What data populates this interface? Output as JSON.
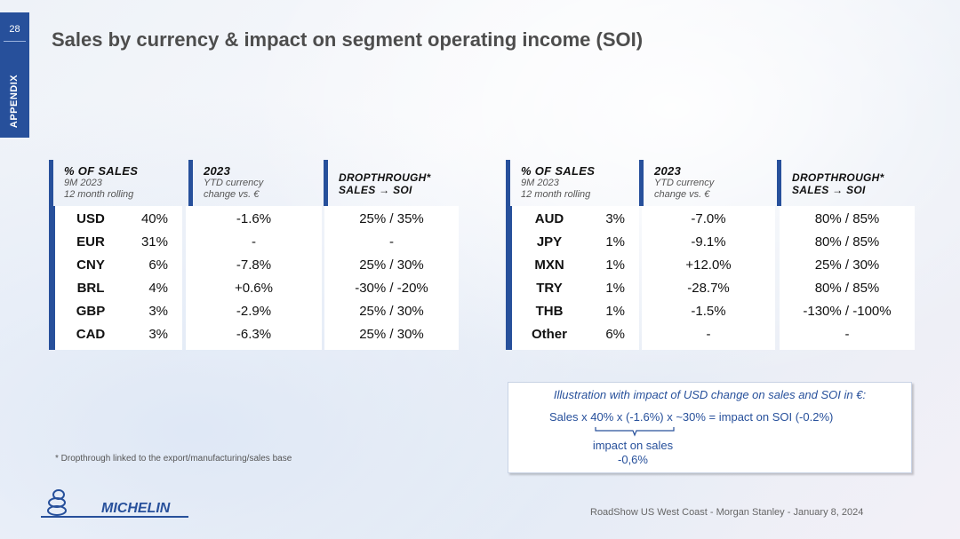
{
  "page_number": "28",
  "section": "APPENDIX",
  "title": "Sales by currency & impact on segment operating income (SOI)",
  "headers": {
    "sales": {
      "title": "% OF SALES",
      "sub1": "9M 2023",
      "sub2": "12 month rolling"
    },
    "ytd": {
      "title": "2023",
      "sub1": "YTD currency",
      "sub2": "change vs. €"
    },
    "drop": {
      "title1": "DROPTHROUGH*",
      "title2": "SALES → SOI"
    }
  },
  "left_table": [
    {
      "currency": "USD",
      "sales": "40%",
      "ytd": "-1.6%",
      "drop": "25% / 35%"
    },
    {
      "currency": "EUR",
      "sales": "31%",
      "ytd": "-",
      "drop": "-"
    },
    {
      "currency": "CNY",
      "sales": "6%",
      "ytd": "-7.8%",
      "drop": "25% / 30%"
    },
    {
      "currency": "BRL",
      "sales": "4%",
      "ytd": "+0.6%",
      "drop": "-30% / -20%"
    },
    {
      "currency": "GBP",
      "sales": "3%",
      "ytd": "-2.9%",
      "drop": "25% / 30%"
    },
    {
      "currency": "CAD",
      "sales": "3%",
      "ytd": "-6.3%",
      "drop": "25% / 30%"
    }
  ],
  "right_table": [
    {
      "currency": "AUD",
      "sales": "3%",
      "ytd": "-7.0%",
      "drop": "80% / 85%"
    },
    {
      "currency": "JPY",
      "sales": "1%",
      "ytd": "-9.1%",
      "drop": "80% / 85%"
    },
    {
      "currency": "MXN",
      "sales": "1%",
      "ytd": "+12.0%",
      "drop": "25% / 30%"
    },
    {
      "currency": "TRY",
      "sales": "1%",
      "ytd": "-28.7%",
      "drop": "80% / 85%"
    },
    {
      "currency": "THB",
      "sales": "1%",
      "ytd": "-1.5%",
      "drop": "-130% / -100%"
    },
    {
      "currency": "Other",
      "sales": "6%",
      "ytd": "-",
      "drop": "-"
    }
  ],
  "illustration": {
    "title": "Illustration with impact of USD change on sales and SOI in €:",
    "formula": "Sales  x  40%  x  (-1.6%)  x  ~30%  =  impact on SOI (-0.2%)",
    "label_line1": "impact on sales",
    "label_line2": "-0,6%"
  },
  "footnote": "* Dropthrough linked to the export/manufacturing/sales base",
  "footer": "RoadShow US West Coast - Morgan Stanley - January 8, 2024",
  "logo_text": "MICHELIN",
  "colors": {
    "brand_blue": "#27509b",
    "title_gray": "#4d4d4d"
  }
}
